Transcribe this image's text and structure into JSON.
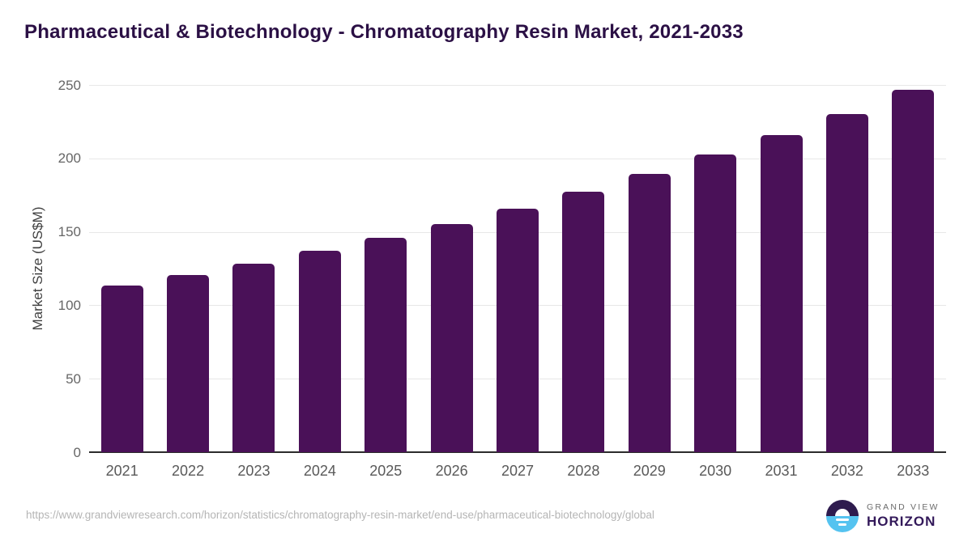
{
  "header": {
    "title": "Pharmaceutical & Biotechnology - Chromatography Resin Market, 2021-2033"
  },
  "chart_data": {
    "type": "bar",
    "title": "Pharmaceutical & Biotechnology - Chromatography Resin Market, 2021-2033",
    "categories": [
      "2021",
      "2022",
      "2023",
      "2024",
      "2025",
      "2026",
      "2027",
      "2028",
      "2029",
      "2030",
      "2031",
      "2032",
      "2033"
    ],
    "values": [
      113.7,
      120.4,
      128.3,
      137.0,
      146.2,
      155.4,
      165.6,
      177.5,
      189.3,
      202.5,
      215.8,
      230.1,
      246.7
    ],
    "xlabel": "",
    "ylabel": "Market Size (US$M)",
    "ylim": [
      0,
      250
    ],
    "yticks": [
      0,
      50,
      100,
      150,
      200,
      250
    ],
    "grid": "horizontal-only",
    "legend": "none"
  },
  "footer": {
    "source_url": "https://www.grandviewresearch.com/horizon/statistics/chromatography-resin-market/end-use/pharmaceutical-biotechnology/global",
    "logo": {
      "line1": "GRAND VIEW",
      "line2": "HORIZON"
    }
  },
  "colors": {
    "bar": "#4a1158",
    "title": "#2b1045",
    "grid": "#e7e7e7",
    "axis_line": "#2b2b2b",
    "ytick_text": "#666666",
    "xtick_text": "#595959",
    "yaxis_title_text": "#3f3f3f",
    "url_text": "#b5b5b5",
    "logo_navy": "#2e1b4e",
    "logo_blue": "#55c3f0",
    "logo_line1_text": "#6b6b6b",
    "logo_line2_text": "#33195a"
  }
}
